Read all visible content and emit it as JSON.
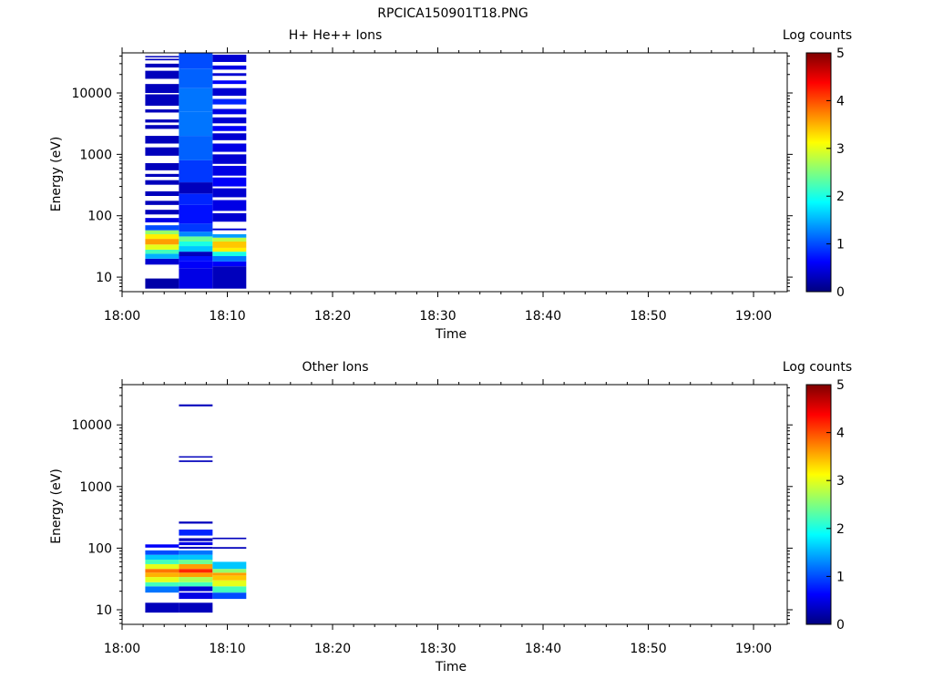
{
  "figure_title": "RPCICA150901T18.PNG",
  "colorbar_scale": {
    "colors": [
      "#00007f",
      "#0000ff",
      "#007fff",
      "#00ffff",
      "#7fff7f",
      "#ffff00",
      "#ff7f00",
      "#ff0000",
      "#7f0000"
    ]
  },
  "chart_data": [
    {
      "type": "heatmap",
      "title": "H+ He++ Ions",
      "xlabel": "Time",
      "ylabel": "Energy (eV)",
      "x_ticks": [
        "18:00",
        "18:10",
        "18:20",
        "18:30",
        "18:40",
        "18:50",
        "19:00"
      ],
      "x_range_minutes": [
        0,
        63.2
      ],
      "y_scale": "log",
      "y_ticks": [
        "10",
        "100",
        "1000",
        "10000"
      ],
      "y_range": [
        5.8,
        45000
      ],
      "colorbar_label": "Log counts",
      "colorbar_ticks": [
        "0",
        "1",
        "2",
        "3",
        "4",
        "5"
      ],
      "colorbar_range": [
        0,
        5
      ],
      "columns": [
        {
          "t0": 2.2,
          "t1": 5.4,
          "bins": [
            {
              "e0": 6.5,
              "e1": 9.5,
              "v": 0.2
            },
            {
              "e0": 16,
              "e1": 20,
              "v": 0.4
            },
            {
              "e0": 20,
              "e1": 24,
              "v": 1.5
            },
            {
              "e0": 24,
              "e1": 28,
              "v": 2.2
            },
            {
              "e0": 28,
              "e1": 34,
              "v": 3.0
            },
            {
              "e0": 34,
              "e1": 42,
              "v": 3.6
            },
            {
              "e0": 42,
              "e1": 50,
              "v": 3.2
            },
            {
              "e0": 50,
              "e1": 58,
              "v": 2.6
            },
            {
              "e0": 58,
              "e1": 70,
              "v": 1.0
            },
            {
              "e0": 78,
              "e1": 92,
              "v": 0.5
            },
            {
              "e0": 105,
              "e1": 125,
              "v": 0.3
            },
            {
              "e0": 150,
              "e1": 175,
              "v": 0.3
            },
            {
              "e0": 210,
              "e1": 250,
              "v": 0.3
            },
            {
              "e0": 320,
              "e1": 380,
              "v": 0.3
            },
            {
              "e0": 430,
              "e1": 480,
              "v": 0.3
            },
            {
              "e0": 550,
              "e1": 720,
              "v": 0.3
            },
            {
              "e0": 950,
              "e1": 1300,
              "v": 0.3
            },
            {
              "e0": 1500,
              "e1": 2000,
              "v": 0.3
            },
            {
              "e0": 2600,
              "e1": 3000,
              "v": 0.3
            },
            {
              "e0": 3300,
              "e1": 3700,
              "v": 0.3
            },
            {
              "e0": 4800,
              "e1": 5400,
              "v": 0.3
            },
            {
              "e0": 6200,
              "e1": 9500,
              "v": 0.3
            },
            {
              "e0": 10000,
              "e1": 14000,
              "v": 0.3
            },
            {
              "e0": 17000,
              "e1": 23000,
              "v": 0.3
            },
            {
              "e0": 26000,
              "e1": 30000,
              "v": 0.3
            },
            {
              "e0": 34000,
              "e1": 36000,
              "v": 0.3
            },
            {
              "e0": 38000,
              "e1": 40000,
              "v": 0.3
            }
          ]
        },
        {
          "t0": 5.4,
          "t1": 8.6,
          "bins": [
            {
              "e0": 6.5,
              "e1": 14,
              "v": 0.5
            },
            {
              "e0": 14,
              "e1": 18,
              "v": 0.6
            },
            {
              "e0": 18,
              "e1": 22,
              "v": 0.7
            },
            {
              "e0": 22,
              "e1": 26,
              "v": 0.3
            },
            {
              "e0": 26,
              "e1": 32,
              "v": 1.6
            },
            {
              "e0": 32,
              "e1": 38,
              "v": 2.0
            },
            {
              "e0": 38,
              "e1": 46,
              "v": 2.4
            },
            {
              "e0": 46,
              "e1": 55,
              "v": 1.3
            },
            {
              "e0": 55,
              "e1": 75,
              "v": 0.9
            },
            {
              "e0": 75,
              "e1": 150,
              "v": 0.7
            },
            {
              "e0": 150,
              "e1": 230,
              "v": 0.8
            },
            {
              "e0": 230,
              "e1": 350,
              "v": 0.3
            },
            {
              "e0": 350,
              "e1": 800,
              "v": 0.9
            },
            {
              "e0": 800,
              "e1": 2000,
              "v": 1.1
            },
            {
              "e0": 2000,
              "e1": 5000,
              "v": 1.2
            },
            {
              "e0": 5000,
              "e1": 12000,
              "v": 1.2
            },
            {
              "e0": 12000,
              "e1": 25000,
              "v": 1.1
            },
            {
              "e0": 25000,
              "e1": 45000,
              "v": 1.0
            }
          ]
        },
        {
          "t0": 8.6,
          "t1": 11.8,
          "bins": [
            {
              "e0": 6.5,
              "e1": 15,
              "v": 0.3
            },
            {
              "e0": 15,
              "e1": 18,
              "v": 0.6
            },
            {
              "e0": 18,
              "e1": 22,
              "v": 1.2
            },
            {
              "e0": 22,
              "e1": 26,
              "v": 2.0
            },
            {
              "e0": 26,
              "e1": 30,
              "v": 3.2
            },
            {
              "e0": 30,
              "e1": 38,
              "v": 3.4
            },
            {
              "e0": 38,
              "e1": 44,
              "v": 2.8
            },
            {
              "e0": 44,
              "e1": 50,
              "v": 1.4
            },
            {
              "e0": 58,
              "e1": 62,
              "v": 0.4
            },
            {
              "e0": 80,
              "e1": 110,
              "v": 0.4
            },
            {
              "e0": 120,
              "e1": 180,
              "v": 0.5
            },
            {
              "e0": 200,
              "e1": 280,
              "v": 0.4
            },
            {
              "e0": 300,
              "e1": 420,
              "v": 0.6
            },
            {
              "e0": 450,
              "e1": 650,
              "v": 0.5
            },
            {
              "e0": 700,
              "e1": 1000,
              "v": 0.4
            },
            {
              "e0": 1100,
              "e1": 1500,
              "v": 0.5
            },
            {
              "e0": 1700,
              "e1": 2200,
              "v": 0.4
            },
            {
              "e0": 2400,
              "e1": 2900,
              "v": 0.6
            },
            {
              "e0": 3200,
              "e1": 4000,
              "v": 0.4
            },
            {
              "e0": 4500,
              "e1": 5500,
              "v": 0.5
            },
            {
              "e0": 6500,
              "e1": 8000,
              "v": 0.8
            },
            {
              "e0": 9000,
              "e1": 12000,
              "v": 0.4
            },
            {
              "e0": 14000,
              "e1": 16000,
              "v": 0.6
            },
            {
              "e0": 19000,
              "e1": 21000,
              "v": 0.4
            },
            {
              "e0": 24000,
              "e1": 28000,
              "v": 0.5
            },
            {
              "e0": 32000,
              "e1": 42000,
              "v": 0.4
            }
          ]
        }
      ]
    },
    {
      "type": "heatmap",
      "title": "Other Ions",
      "xlabel": "Time",
      "ylabel": "Energy (eV)",
      "x_ticks": [
        "18:00",
        "18:10",
        "18:20",
        "18:30",
        "18:40",
        "18:50",
        "19:00"
      ],
      "x_range_minutes": [
        0,
        63.2
      ],
      "y_scale": "log",
      "y_ticks": [
        "10",
        "100",
        "1000",
        "10000"
      ],
      "y_range": [
        5.8,
        45000
      ],
      "colorbar_label": "Log counts",
      "colorbar_ticks": [
        "0",
        "1",
        "2",
        "3",
        "4",
        "5"
      ],
      "colorbar_range": [
        0,
        5
      ],
      "columns": [
        {
          "t0": 2.2,
          "t1": 5.4,
          "bins": [
            {
              "e0": 9,
              "e1": 13,
              "v": 0.3
            },
            {
              "e0": 19,
              "e1": 24,
              "v": 1.2
            },
            {
              "e0": 24,
              "e1": 28,
              "v": 2.2
            },
            {
              "e0": 28,
              "e1": 34,
              "v": 3.0
            },
            {
              "e0": 34,
              "e1": 40,
              "v": 3.5
            },
            {
              "e0": 40,
              "e1": 46,
              "v": 3.8
            },
            {
              "e0": 46,
              "e1": 55,
              "v": 3.0
            },
            {
              "e0": 55,
              "e1": 65,
              "v": 2.2
            },
            {
              "e0": 65,
              "e1": 78,
              "v": 1.6
            },
            {
              "e0": 78,
              "e1": 92,
              "v": 1.0
            },
            {
              "e0": 102,
              "e1": 115,
              "v": 0.6
            }
          ]
        },
        {
          "t0": 5.4,
          "t1": 8.6,
          "bins": [
            {
              "e0": 9,
              "e1": 13,
              "v": 0.3
            },
            {
              "e0": 15,
              "e1": 19,
              "v": 0.5
            },
            {
              "e0": 20,
              "e1": 24,
              "v": 0.4
            },
            {
              "e0": 24,
              "e1": 28,
              "v": 2.2
            },
            {
              "e0": 28,
              "e1": 34,
              "v": 2.7
            },
            {
              "e0": 34,
              "e1": 40,
              "v": 3.6
            },
            {
              "e0": 40,
              "e1": 46,
              "v": 4.2
            },
            {
              "e0": 46,
              "e1": 55,
              "v": 3.6
            },
            {
              "e0": 55,
              "e1": 65,
              "v": 2.4
            },
            {
              "e0": 65,
              "e1": 78,
              "v": 1.6
            },
            {
              "e0": 78,
              "e1": 92,
              "v": 1.2
            },
            {
              "e0": 98,
              "e1": 105,
              "v": 0.3
            },
            {
              "e0": 112,
              "e1": 125,
              "v": 0.5
            },
            {
              "e0": 130,
              "e1": 145,
              "v": 0.3
            },
            {
              "e0": 160,
              "e1": 200,
              "v": 0.8
            },
            {
              "e0": 250,
              "e1": 270,
              "v": 0.3
            },
            {
              "e0": 2500,
              "e1": 2650,
              "v": 0.3
            },
            {
              "e0": 2950,
              "e1": 3100,
              "v": 0.3
            },
            {
              "e0": 20000,
              "e1": 21500,
              "v": 0.3
            }
          ]
        },
        {
          "t0": 8.6,
          "t1": 11.8,
          "bins": [
            {
              "e0": 15,
              "e1": 19,
              "v": 1.0
            },
            {
              "e0": 19,
              "e1": 24,
              "v": 2.2
            },
            {
              "e0": 24,
              "e1": 30,
              "v": 3.0
            },
            {
              "e0": 30,
              "e1": 36,
              "v": 3.4
            },
            {
              "e0": 36,
              "e1": 40,
              "v": 3.6
            },
            {
              "e0": 40,
              "e1": 46,
              "v": 2.6
            },
            {
              "e0": 46,
              "e1": 60,
              "v": 1.6
            },
            {
              "e0": 98,
              "e1": 104,
              "v": 0.3
            },
            {
              "e0": 140,
              "e1": 148,
              "v": 0.3
            }
          ]
        }
      ]
    }
  ]
}
